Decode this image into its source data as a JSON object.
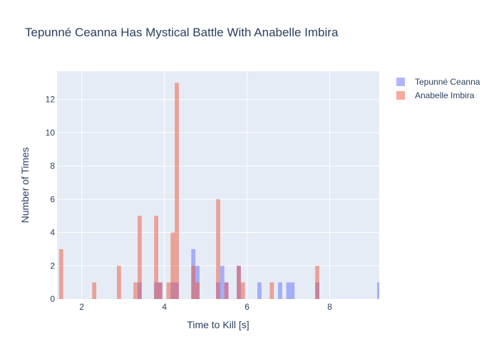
{
  "chart_data": {
    "type": "bar",
    "title": "Tepunné Ceanna Has Mystical Battle With Anabelle Imbira",
    "xlabel": "Time to Kill [s]",
    "ylabel": "Number of Times",
    "xlim": [
      1.4,
      9.2
    ],
    "ylim": [
      0,
      13.7
    ],
    "bin_width": 0.1,
    "barmode": "overlay",
    "x_ticks": [
      2,
      4,
      6,
      8
    ],
    "y_ticks": [
      0,
      2,
      4,
      6,
      8,
      10,
      12
    ],
    "legend": {
      "placement": "top-right"
    },
    "series": [
      {
        "name": "Tepunné Ceanna",
        "color": "#636efa",
        "opacity": 0.5,
        "bins": [
          {
            "x": 3.4,
            "y": 1
          },
          {
            "x": 3.8,
            "y": 1
          },
          {
            "x": 3.9,
            "y": 1
          },
          {
            "x": 4.2,
            "y": 1
          },
          {
            "x": 4.3,
            "y": 1
          },
          {
            "x": 4.7,
            "y": 3
          },
          {
            "x": 4.8,
            "y": 2
          },
          {
            "x": 5.3,
            "y": 1
          },
          {
            "x": 5.4,
            "y": 2
          },
          {
            "x": 5.5,
            "y": 1
          },
          {
            "x": 5.8,
            "y": 2
          },
          {
            "x": 6.3,
            "y": 1
          },
          {
            "x": 6.8,
            "y": 1
          },
          {
            "x": 7.0,
            "y": 1
          },
          {
            "x": 7.1,
            "y": 1
          },
          {
            "x": 7.7,
            "y": 1
          },
          {
            "x": 9.2,
            "y": 1
          }
        ]
      },
      {
        "name": "Anabelle Imbira",
        "color": "#ef553b",
        "opacity": 0.5,
        "bins": [
          {
            "x": 1.5,
            "y": 3
          },
          {
            "x": 2.3,
            "y": 1
          },
          {
            "x": 2.9,
            "y": 2
          },
          {
            "x": 3.3,
            "y": 1
          },
          {
            "x": 3.4,
            "y": 5
          },
          {
            "x": 3.8,
            "y": 5
          },
          {
            "x": 3.9,
            "y": 1
          },
          {
            "x": 4.1,
            "y": 1
          },
          {
            "x": 4.2,
            "y": 4
          },
          {
            "x": 4.3,
            "y": 13
          },
          {
            "x": 4.7,
            "y": 2
          },
          {
            "x": 4.8,
            "y": 1
          },
          {
            "x": 5.3,
            "y": 6
          },
          {
            "x": 5.5,
            "y": 1
          },
          {
            "x": 5.8,
            "y": 2
          },
          {
            "x": 5.9,
            "y": 1
          },
          {
            "x": 6.6,
            "y": 1
          },
          {
            "x": 7.7,
            "y": 2
          }
        ]
      }
    ]
  }
}
